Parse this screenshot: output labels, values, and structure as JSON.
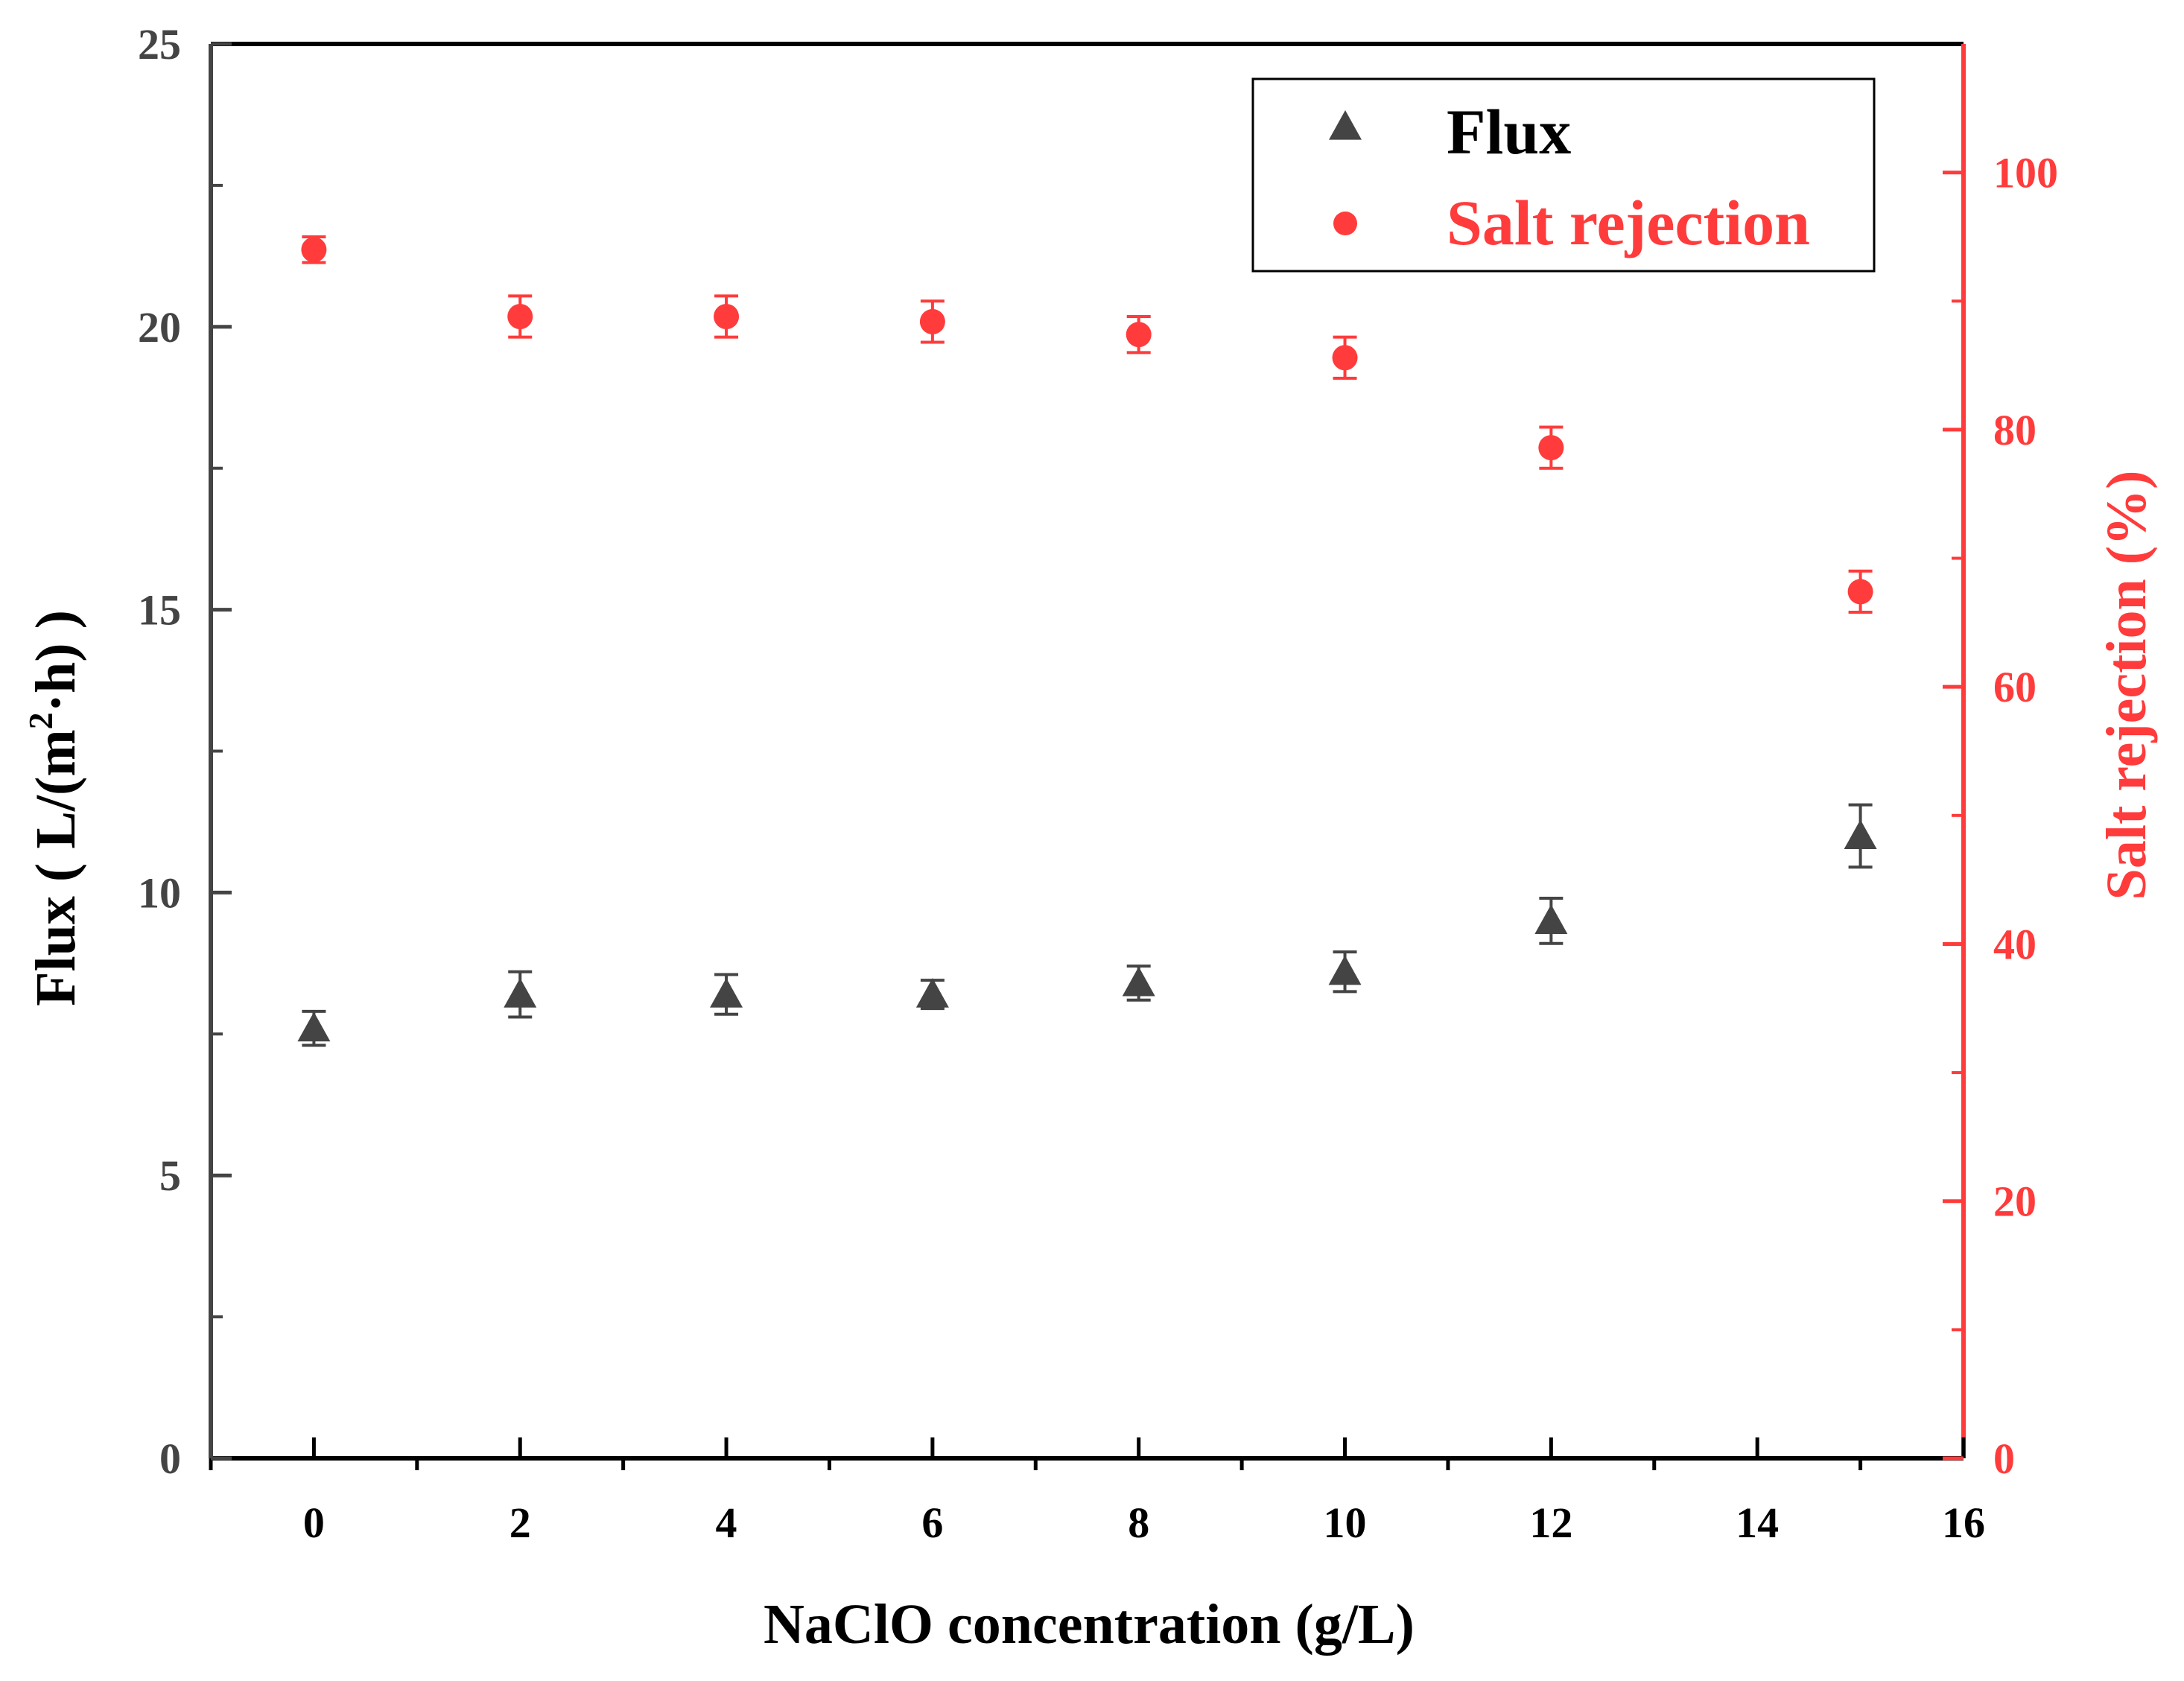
{
  "chart_data": {
    "type": "scatter",
    "title": "",
    "xlabel": "NaClO concentration (g/L)",
    "ylabel_left_parts": [
      "Flux ( L/(m",
      "2",
      "·h) )"
    ],
    "ylabel_right": "Salt rejection (%)",
    "xlim": [
      -1,
      16
    ],
    "ylim_left": [
      0,
      25
    ],
    "ylim_right": [
      0,
      110
    ],
    "x_ticks": [
      0,
      2,
      4,
      6,
      8,
      10,
      12,
      14,
      16
    ],
    "y_left_ticks": [
      0,
      5,
      10,
      15,
      20,
      25
    ],
    "y_right_ticks": [
      0,
      20,
      40,
      60,
      80,
      100
    ],
    "legend_position": "top-right",
    "colors": {
      "flux": "#444444",
      "rejection": "#ff3b3b",
      "right_axis": "#ff3b3b",
      "axis": "#000000"
    },
    "series": [
      {
        "name": "Flux",
        "axis": "left",
        "marker": "triangle",
        "x": [
          0,
          2,
          4,
          6,
          8,
          10,
          12,
          15
        ],
        "y": [
          7.6,
          8.2,
          8.2,
          8.2,
          8.4,
          8.6,
          9.5,
          11.0
        ],
        "err": [
          0.3,
          0.4,
          0.35,
          0.25,
          0.3,
          0.35,
          0.4,
          0.55
        ]
      },
      {
        "name": "Salt rejection",
        "axis": "right",
        "marker": "circle",
        "x": [
          0,
          2,
          4,
          6,
          8,
          10,
          12,
          15
        ],
        "y": [
          94.0,
          88.8,
          88.8,
          88.4,
          87.4,
          85.6,
          78.6,
          67.4
        ],
        "err": [
          1.0,
          1.6,
          1.6,
          1.6,
          1.4,
          1.6,
          1.6,
          1.6
        ]
      }
    ]
  }
}
